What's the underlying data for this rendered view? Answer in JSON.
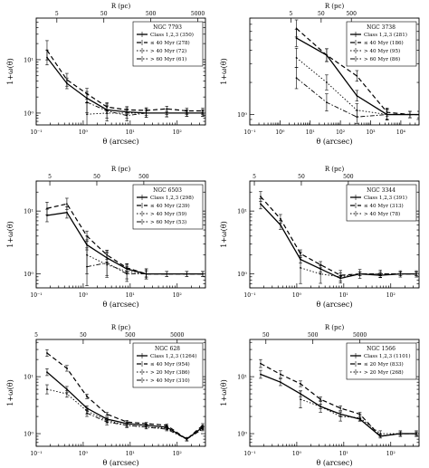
{
  "chart_data": [
    {
      "type": "line",
      "title": "NGC 7793",
      "xlabel": "θ (arcsec)",
      "top_label": "R (pc)",
      "ylabel": "1+ω(θ)",
      "xscale": "log",
      "yscale": "log",
      "xlim": [
        0.1,
        400
      ],
      "ylim": [
        0.6,
        60
      ],
      "xticks": [
        {
          "v": 0.1,
          "t": "10⁻¹"
        },
        {
          "v": 1,
          "t": "10⁰"
        },
        {
          "v": 10,
          "t": "10¹"
        },
        {
          "v": 100,
          "t": "10²"
        }
      ],
      "yticks": [
        {
          "v": 1,
          "t": "10⁰"
        },
        {
          "v": 10,
          "t": "10¹"
        }
      ],
      "top_ticks": [
        {
          "v": 0.275,
          "t": "5"
        },
        {
          "v": 2.75,
          "t": "50"
        },
        {
          "v": 27.5,
          "t": "500"
        },
        {
          "v": 275,
          "t": "5000"
        }
      ],
      "legend_position": "top-right",
      "series": [
        {
          "name": "Class 1,2,3 (350)",
          "style": "solid",
          "x": [
            0.17,
            0.45,
            1.2,
            3.2,
            8.5,
            22,
            60,
            160,
            350
          ],
          "y": [
            11,
            3.6,
            1.9,
            1.15,
            1.05,
            1.0,
            1.0,
            1.0,
            1.0
          ],
          "err": [
            0.14,
            0.1,
            0.09,
            0.07,
            0.05,
            0.04,
            0.03,
            0.03,
            0.03
          ]
        },
        {
          "name": "≤ 40 Myr (278)",
          "style": "dashed",
          "x": [
            0.17,
            0.45,
            1.2,
            3.2,
            8.5,
            22,
            60,
            160,
            350
          ],
          "y": [
            15,
            4.2,
            2.3,
            1.3,
            1.15,
            1.12,
            1.2,
            1.1,
            1.1
          ],
          "err": [
            0.18,
            0.12,
            0.1,
            0.08,
            0.06,
            0.05,
            0.05,
            0.05,
            0.05
          ]
        },
        {
          "name": "> 40 Myr (72)",
          "style": "dotted",
          "x": [
            1.2,
            3.2,
            8.5,
            22,
            60,
            160,
            350
          ],
          "y": [
            0.95,
            1.0,
            1.0,
            1.0,
            1.0,
            1.0,
            1.0
          ],
          "err": [
            0.22,
            0.15,
            0.1,
            0.08,
            0.07,
            0.06,
            0.06
          ]
        },
        {
          "name": "> 60 Myr (61)",
          "style": "dashdot",
          "x": [
            1.2,
            3.2,
            8.5,
            22,
            60,
            160,
            350
          ],
          "y": [
            1.6,
            1.1,
            0.9,
            1.0,
            1.0,
            1.0,
            1.0
          ],
          "err": [
            0.2,
            0.14,
            0.1,
            0.08,
            0.07,
            0.06,
            0.06
          ]
        }
      ]
    },
    {
      "type": "line",
      "title": "NGC 3738",
      "xlabel": "θ (arcsec)",
      "top_label": "R (pc)",
      "ylabel": "1+ω(θ)",
      "xscale": "log",
      "yscale": "log",
      "xlim": [
        0.1,
        40000
      ],
      "ylim": [
        0.8,
        8
      ],
      "xticks": [
        {
          "v": 0.1,
          "t": "10⁻¹"
        },
        {
          "v": 1,
          "t": "10⁰"
        },
        {
          "v": 10,
          "t": "10¹"
        },
        {
          "v": 100,
          "t": "10²"
        },
        {
          "v": 1000,
          "t": "10³"
        },
        {
          "v": 10000,
          "t": "10⁴"
        }
      ],
      "yticks": [
        {
          "v": 1,
          "t": "10⁰"
        }
      ],
      "top_ticks": [
        {
          "v": 2.3,
          "t": "5"
        },
        {
          "v": 23,
          "t": "50"
        },
        {
          "v": 230,
          "t": "500"
        }
      ],
      "legend_position": "top-right",
      "series": [
        {
          "name": "Class 1,2,3 (281)",
          "style": "solid",
          "x": [
            3.5,
            35,
            350,
            3500,
            20000,
            40000
          ],
          "y": [
            5.2,
            3.6,
            1.5,
            1.0,
            1.0,
            1.0
          ],
          "err": [
            0.08,
            0.06,
            0.05,
            0.04,
            0.03,
            0.03
          ]
        },
        {
          "name": "≤ 40 Myr (186)",
          "style": "dashed",
          "x": [
            3.5,
            35,
            350,
            3500,
            20000,
            40000
          ],
          "y": [
            6.4,
            3.6,
            2.3,
            1.05,
            1.0,
            1.0
          ],
          "err": [
            0.08,
            0.06,
            0.05,
            0.04,
            0.03,
            0.03
          ]
        },
        {
          "name": "> 40 Myr (95)",
          "style": "dotted",
          "x": [
            3.5,
            35,
            350,
            3500
          ],
          "y": [
            3.4,
            2.0,
            1.1,
            1.0
          ],
          "err": [
            0.09,
            0.07,
            0.06,
            0.05
          ]
        },
        {
          "name": "> 60 Myr (86)",
          "style": "dashdot",
          "x": [
            3.5,
            35,
            350,
            3500
          ],
          "y": [
            2.2,
            1.3,
            0.95,
            1.0
          ],
          "err": [
            0.1,
            0.08,
            0.06,
            0.05
          ]
        }
      ]
    },
    {
      "type": "line",
      "title": "NGC 6503",
      "xlabel": "θ (arcsec)",
      "top_label": "R (pc)",
      "ylabel": "1+ω(θ)",
      "xscale": "log",
      "yscale": "log",
      "xlim": [
        0.1,
        400
      ],
      "ylim": [
        0.6,
        30
      ],
      "xticks": [
        {
          "v": 0.1,
          "t": "10⁻¹"
        },
        {
          "v": 1,
          "t": "10⁰"
        },
        {
          "v": 10,
          "t": "10¹"
        },
        {
          "v": 100,
          "t": "10²"
        }
      ],
      "yticks": [
        {
          "v": 1,
          "t": "10⁰"
        },
        {
          "v": 10,
          "t": "10¹"
        }
      ],
      "top_ticks": [
        {
          "v": 0.195,
          "t": "5"
        },
        {
          "v": 1.95,
          "t": "50"
        },
        {
          "v": 19.5,
          "t": "500"
        }
      ],
      "legend_position": "top-right",
      "series": [
        {
          "name": "Class 1,2,3 (298)",
          "style": "solid",
          "x": [
            0.17,
            0.45,
            1.2,
            3.2,
            8.5,
            22,
            60,
            160,
            350
          ],
          "y": [
            8.5,
            9.5,
            2.9,
            1.8,
            1.2,
            1.0,
            1.0,
            1.0,
            1.0
          ],
          "err": [
            0.1,
            0.09,
            0.08,
            0.07,
            0.06,
            0.05,
            0.04,
            0.04,
            0.04
          ]
        },
        {
          "name": "≤ 40 Myr (239)",
          "style": "dashed",
          "x": [
            0.17,
            0.45,
            1.2,
            3.2,
            8.5,
            22,
            60,
            160,
            350
          ],
          "y": [
            11,
            13,
            4.0,
            2.0,
            1.25,
            1.0,
            1.0,
            1.0,
            1.0
          ],
          "err": [
            0.1,
            0.09,
            0.08,
            0.07,
            0.06,
            0.05,
            0.04,
            0.04,
            0.04
          ]
        },
        {
          "name": "> 40 Myr (59)",
          "style": "dotted",
          "x": [
            1.2,
            3.2,
            8.5,
            22
          ],
          "y": [
            2.0,
            1.4,
            1.1,
            1.0
          ],
          "err": [
            0.3,
            0.2,
            0.12,
            0.08
          ]
        },
        {
          "name": "> 60 Myr (53)",
          "style": "dashdot",
          "x": [
            1.2,
            3.2,
            8.5,
            22
          ],
          "y": [
            1.3,
            1.5,
            1.0,
            1.0
          ],
          "err": [
            0.3,
            0.2,
            0.12,
            0.08
          ]
        }
      ]
    },
    {
      "type": "line",
      "title": "NGC 3344",
      "xlabel": "θ (arcsec)",
      "top_label": "R (pc)",
      "ylabel": "1+ω(θ)",
      "xscale": "log",
      "yscale": "log",
      "xlim": [
        0.1,
        400
      ],
      "ylim": [
        0.6,
        30
      ],
      "xticks": [
        {
          "v": 0.1,
          "t": "10⁻¹"
        },
        {
          "v": 1,
          "t": "10⁰"
        },
        {
          "v": 10,
          "t": "10¹"
        },
        {
          "v": 100,
          "t": "10²"
        }
      ],
      "yticks": [
        {
          "v": 1,
          "t": "10⁰"
        },
        {
          "v": 10,
          "t": "10¹"
        }
      ],
      "top_ticks": [
        {
          "v": 0.125,
          "t": "5"
        },
        {
          "v": 1.25,
          "t": "50"
        },
        {
          "v": 12.5,
          "t": "500"
        }
      ],
      "legend_position": "top-right",
      "series": [
        {
          "name": "Class 1,2,3 (391)",
          "style": "solid",
          "x": [
            0.17,
            0.45,
            1.2,
            3.2,
            8.5,
            22,
            60,
            160,
            350
          ],
          "y": [
            13,
            6,
            1.7,
            1.2,
            0.85,
            1.0,
            0.95,
            1.0,
            1.0
          ],
          "err": [
            0.08,
            0.07,
            0.06,
            0.05,
            0.04,
            0.03,
            0.03,
            0.03,
            0.03
          ]
        },
        {
          "name": "≤ 40 Myr (313)",
          "style": "dashed",
          "x": [
            0.17,
            0.45,
            1.2,
            3.2,
            8.5,
            22,
            60,
            160,
            350
          ],
          "y": [
            17,
            7.5,
            2.1,
            1.4,
            0.95,
            1.0,
            1.0,
            1.0,
            1.0
          ],
          "err": [
            0.08,
            0.07,
            0.06,
            0.05,
            0.04,
            0.03,
            0.03,
            0.03,
            0.03
          ]
        },
        {
          "name": "> 40 Myr (78)",
          "style": "dotted",
          "x": [
            1.2,
            3.2,
            8.5,
            22,
            60,
            160,
            350
          ],
          "y": [
            1.25,
            1.0,
            0.9,
            1.0,
            1.0,
            1.0,
            1.0
          ],
          "err": [
            0.25,
            0.15,
            0.1,
            0.07,
            0.06,
            0.05,
            0.05
          ]
        }
      ]
    },
    {
      "type": "line",
      "title": "NGC 628",
      "xlabel": "θ (arcsec)",
      "top_label": "R (pc)",
      "ylabel": "1+ω(θ)",
      "xscale": "log",
      "yscale": "log",
      "xlim": [
        0.1,
        400
      ],
      "ylim": [
        0.6,
        45
      ],
      "xticks": [
        {
          "v": 0.1,
          "t": "10⁻¹"
        },
        {
          "v": 1,
          "t": "10⁰"
        },
        {
          "v": 10,
          "t": "10¹"
        },
        {
          "v": 100,
          "t": "10²"
        }
      ],
      "yticks": [
        {
          "v": 1,
          "t": "10⁰"
        },
        {
          "v": 10,
          "t": "10¹"
        }
      ],
      "top_ticks": [
        {
          "v": 0.1,
          "t": "5"
        },
        {
          "v": 1.0,
          "t": "50"
        },
        {
          "v": 10,
          "t": "500"
        },
        {
          "v": 100,
          "t": "5000"
        }
      ],
      "legend_position": "top-right",
      "series": [
        {
          "name": "Class 1,2,3 (1264)",
          "style": "solid",
          "x": [
            0.17,
            0.45,
            1.2,
            3.2,
            8.5,
            22,
            60,
            160,
            350
          ],
          "y": [
            12,
            6,
            2.8,
            1.8,
            1.5,
            1.4,
            1.3,
            0.8,
            1.3
          ],
          "err": [
            0.06,
            0.05,
            0.04,
            0.03,
            0.03,
            0.02,
            0.02,
            0.03,
            0.03
          ]
        },
        {
          "name": "≤ 40 Myr (954)",
          "style": "dashed",
          "x": [
            0.17,
            0.45,
            1.2,
            3.2,
            8.5,
            22,
            60,
            160,
            350
          ],
          "y": [
            26,
            14,
            4.5,
            2.2,
            1.6,
            1.5,
            1.4,
            0.8,
            1.4
          ],
          "err": [
            0.06,
            0.05,
            0.04,
            0.03,
            0.03,
            0.02,
            0.02,
            0.03,
            0.03
          ]
        },
        {
          "name": "> 20 Myr (386)",
          "style": "dotted",
          "x": [
            0.17,
            0.45,
            1.2,
            3.2,
            8.5,
            22,
            60,
            160,
            350
          ],
          "y": [
            6,
            5,
            2.5,
            1.7,
            1.4,
            1.3,
            1.25,
            0.8,
            1.25
          ],
          "err": [
            0.08,
            0.06,
            0.05,
            0.04,
            0.03,
            0.03,
            0.03,
            0.03,
            0.03
          ]
        },
        {
          "name": "> 40 Myr (310)",
          "style": "dashdot",
          "x": [
            1.2,
            3.2,
            8.5,
            22,
            60,
            160,
            350
          ],
          "y": [
            2.3,
            1.6,
            1.4,
            1.3,
            1.2,
            0.8,
            1.2
          ],
          "err": [
            0.06,
            0.05,
            0.04,
            0.03,
            0.03,
            0.03,
            0.03
          ]
        }
      ]
    },
    {
      "type": "line",
      "title": "NGC 1566",
      "xlabel": "θ (arcsec)",
      "top_label": "R (pc)",
      "ylabel": "1+ω(θ)",
      "xscale": "log",
      "yscale": "log",
      "xlim": [
        0.1,
        400
      ],
      "ylim": [
        0.6,
        45
      ],
      "xticks": [
        {
          "v": 0.1,
          "t": "10⁻¹"
        },
        {
          "v": 1,
          "t": "10⁰"
        },
        {
          "v": 10,
          "t": "10¹"
        },
        {
          "v": 100,
          "t": "10²"
        }
      ],
      "yticks": [
        {
          "v": 1,
          "t": "10⁰"
        },
        {
          "v": 10,
          "t": "10¹"
        }
      ],
      "top_ticks": [
        {
          "v": 0.22,
          "t": "50"
        },
        {
          "v": 2.2,
          "t": "500"
        },
        {
          "v": 22,
          "t": "5000"
        }
      ],
      "legend_position": "top-right",
      "series": [
        {
          "name": "Class 1,2,3 (1101)",
          "style": "solid",
          "x": [
            0.17,
            0.45,
            1.2,
            3.2,
            8.5,
            22,
            60,
            160,
            350
          ],
          "y": [
            11,
            8,
            5,
            3,
            2.2,
            1.8,
            0.9,
            1.0,
            1.0
          ],
          "err": [
            0.07,
            0.06,
            0.05,
            0.04,
            0.04,
            0.03,
            0.03,
            0.03,
            0.03
          ]
        },
        {
          "name": "≤ 20 Myr (833)",
          "style": "dashed",
          "x": [
            0.17,
            0.45,
            1.2,
            3.2,
            8.5,
            22,
            60,
            160,
            350
          ],
          "y": [
            17,
            11,
            7.5,
            4,
            2.8,
            2.2,
            0.9,
            1.0,
            1.0
          ],
          "err": [
            0.07,
            0.06,
            0.05,
            0.04,
            0.04,
            0.03,
            0.03,
            0.03,
            0.03
          ]
        },
        {
          "name": "> 20 Myr (268)",
          "style": "dotted",
          "x": [
            1.2,
            3.2,
            8.5,
            22,
            60,
            160,
            350
          ],
          "y": [
            4,
            3,
            2,
            1.9,
            1.0,
            1.0,
            1.0
          ],
          "err": [
            0.15,
            0.1,
            0.08,
            0.06,
            0.05,
            0.05,
            0.05
          ]
        }
      ]
    }
  ]
}
